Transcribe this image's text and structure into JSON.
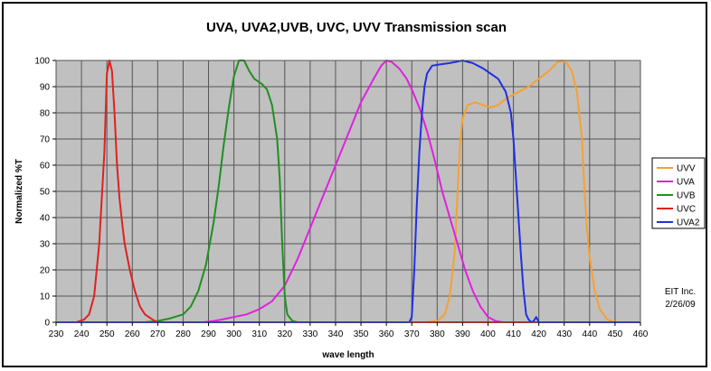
{
  "chart_data": {
    "type": "line",
    "title": "UVA, UVA2,UVB, UVC, UVV Transmission scan",
    "xlabel": "wave length",
    "ylabel": "Normalized %T",
    "xlim": [
      230,
      460
    ],
    "ylim": [
      0,
      100
    ],
    "x_ticks": [
      "230",
      "240",
      "250",
      "260",
      "270",
      "280",
      "290",
      "300",
      "310",
      "320",
      "330",
      "340",
      "350",
      "360",
      "370",
      "380",
      "390",
      "400",
      "410",
      "420",
      "430",
      "440",
      "450",
      "460"
    ],
    "y_ticks": [
      "0",
      "10",
      "20",
      "30",
      "40",
      "50",
      "60",
      "70",
      "80",
      "90",
      "100"
    ],
    "grid": true,
    "plot_background": "#c0c0c0",
    "legend_position": "right",
    "annotation": [
      "EIT Inc.",
      "2/26/09"
    ],
    "series": [
      {
        "name": "UVV",
        "color": "#f7a030",
        "points": [
          [
            230,
            0
          ],
          [
            375,
            0
          ],
          [
            380,
            0.5
          ],
          [
            383,
            3
          ],
          [
            385,
            10
          ],
          [
            387,
            28
          ],
          [
            388,
            50
          ],
          [
            389,
            68
          ],
          [
            390,
            78
          ],
          [
            392,
            83
          ],
          [
            395,
            84
          ],
          [
            398,
            83
          ],
          [
            401,
            82
          ],
          [
            404,
            83
          ],
          [
            408,
            86
          ],
          [
            412,
            88
          ],
          [
            416,
            90
          ],
          [
            420,
            93
          ],
          [
            424,
            96
          ],
          [
            427,
            99
          ],
          [
            429,
            100
          ],
          [
            431,
            99
          ],
          [
            433,
            96
          ],
          [
            435,
            88
          ],
          [
            437,
            70
          ],
          [
            438,
            50
          ],
          [
            439,
            35
          ],
          [
            440,
            25
          ],
          [
            442,
            12
          ],
          [
            444,
            5
          ],
          [
            447,
            1
          ],
          [
            450,
            0
          ],
          [
            460,
            0
          ]
        ]
      },
      {
        "name": "UVA",
        "color": "#e020e0",
        "points": [
          [
            230,
            0
          ],
          [
            288,
            0
          ],
          [
            292,
            0.5
          ],
          [
            295,
            1
          ],
          [
            300,
            2
          ],
          [
            305,
            3
          ],
          [
            310,
            5
          ],
          [
            315,
            8
          ],
          [
            320,
            14
          ],
          [
            325,
            24
          ],
          [
            330,
            36
          ],
          [
            335,
            48
          ],
          [
            340,
            60
          ],
          [
            345,
            72
          ],
          [
            350,
            84
          ],
          [
            355,
            93
          ],
          [
            358,
            98
          ],
          [
            360,
            100
          ],
          [
            362,
            99.5
          ],
          [
            365,
            97
          ],
          [
            368,
            93
          ],
          [
            370,
            89
          ],
          [
            373,
            82
          ],
          [
            376,
            73
          ],
          [
            379,
            62
          ],
          [
            382,
            50
          ],
          [
            385,
            40
          ],
          [
            388,
            30
          ],
          [
            391,
            20
          ],
          [
            394,
            12
          ],
          [
            397,
            6
          ],
          [
            400,
            2
          ],
          [
            403,
            0.5
          ],
          [
            406,
            0
          ],
          [
            460,
            0
          ]
        ]
      },
      {
        "name": "UVB",
        "color": "#209020",
        "points": [
          [
            230,
            0
          ],
          [
            265,
            0
          ],
          [
            270,
            0.5
          ],
          [
            275,
            1.5
          ],
          [
            280,
            3
          ],
          [
            283,
            6
          ],
          [
            286,
            12
          ],
          [
            289,
            22
          ],
          [
            292,
            38
          ],
          [
            294,
            52
          ],
          [
            296,
            68
          ],
          [
            298,
            82
          ],
          [
            300,
            94
          ],
          [
            302,
            100
          ],
          [
            304,
            100
          ],
          [
            306,
            96
          ],
          [
            308,
            93
          ],
          [
            311,
            91
          ],
          [
            313,
            89
          ],
          [
            315,
            83
          ],
          [
            317,
            70
          ],
          [
            318,
            55
          ],
          [
            319,
            30
          ],
          [
            320,
            10
          ],
          [
            321,
            3
          ],
          [
            323,
            0.5
          ],
          [
            325,
            0
          ],
          [
            460,
            0
          ]
        ]
      },
      {
        "name": "UVC",
        "color": "#e02020",
        "points": [
          [
            230,
            0
          ],
          [
            238,
            0
          ],
          [
            241,
            1
          ],
          [
            243,
            3
          ],
          [
            245,
            10
          ],
          [
            247,
            30
          ],
          [
            249,
            65
          ],
          [
            250,
            95
          ],
          [
            251,
            100
          ],
          [
            252,
            96
          ],
          [
            253,
            80
          ],
          [
            254,
            60
          ],
          [
            255,
            47
          ],
          [
            256,
            38
          ],
          [
            257,
            30
          ],
          [
            259,
            20
          ],
          [
            261,
            12
          ],
          [
            263,
            6
          ],
          [
            265,
            3
          ],
          [
            268,
            1
          ],
          [
            270,
            0
          ],
          [
            460,
            0
          ]
        ]
      },
      {
        "name": "UVA2",
        "color": "#2030e0",
        "points": [
          [
            230,
            0
          ],
          [
            369,
            0
          ],
          [
            370,
            2
          ],
          [
            371,
            20
          ],
          [
            372,
            45
          ],
          [
            373,
            65
          ],
          [
            374,
            80
          ],
          [
            375,
            90
          ],
          [
            376,
            95
          ],
          [
            378,
            98
          ],
          [
            381,
            98.5
          ],
          [
            385,
            99
          ],
          [
            390,
            100
          ],
          [
            394,
            99
          ],
          [
            398,
            97
          ],
          [
            401,
            95
          ],
          [
            404,
            93
          ],
          [
            407,
            88
          ],
          [
            409,
            80
          ],
          [
            410,
            70
          ],
          [
            411,
            55
          ],
          [
            412,
            40
          ],
          [
            413,
            25
          ],
          [
            414,
            12
          ],
          [
            415,
            3
          ],
          [
            416,
            1
          ],
          [
            417,
            0
          ],
          [
            418,
            0.5
          ],
          [
            419,
            2
          ],
          [
            420,
            0
          ],
          [
            460,
            0
          ]
        ]
      }
    ]
  }
}
